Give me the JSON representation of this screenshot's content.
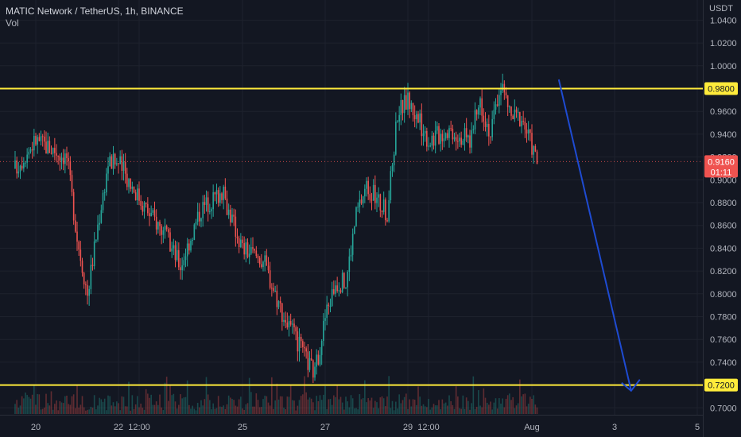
{
  "header": {
    "symbol_title": "MATIC Network / TetherUS, 1h, BINANCE",
    "volume_label": "Vol"
  },
  "price_axis": {
    "currency": "USDT",
    "tick_labels": [
      "0.7000",
      "0.7200",
      "0.7400",
      "0.7600",
      "0.7800",
      "0.8000",
      "0.8200",
      "0.8400",
      "0.8600",
      "0.8800",
      "0.9000",
      "0.9200",
      "0.9400",
      "0.9600",
      "0.9800",
      "1.0000",
      "1.0200",
      "1.0400"
    ]
  },
  "time_axis": {
    "tick_labels": [
      "20",
      "22",
      "12:00",
      "25",
      "27",
      "29",
      "12:00",
      "Aug",
      "3",
      "5"
    ]
  },
  "badges": {
    "resistance": "0.9800",
    "support": "0.7200",
    "last_price": "0.9160",
    "countdown": "01:11"
  },
  "colors": {
    "background": "#131722",
    "grid": "#1e222d",
    "up": "#26a69a",
    "down": "#ef5350",
    "level_line": "#ffeb3b",
    "arrow": "#1e4bd2",
    "axis_text": "#b2b5be",
    "badge_last": "#ef5350"
  },
  "chart_data": {
    "type": "candlestick",
    "title": "MATIC Network / TetherUS, 1h, BINANCE",
    "y_unit": "USDT",
    "ylim": [
      0.693,
      1.043
    ],
    "x_range_days": [
      "Jul 19",
      "Aug 5"
    ],
    "grid": true,
    "horizontal_levels": [
      {
        "label": "resistance",
        "value": 0.98
      },
      {
        "label": "support",
        "value": 0.72
      }
    ],
    "last_price": 0.916,
    "projection_arrow": {
      "from": {
        "date": "Aug 1",
        "value": 0.988
      },
      "to": {
        "date": "Aug 2 (approx)",
        "value": 0.715
      }
    },
    "price_path_approx": [
      {
        "time": "Jul 19 12:00",
        "close": 0.91
      },
      {
        "time": "Jul 20",
        "close": 0.935
      },
      {
        "time": "Jul 20 18:00",
        "close": 0.92
      },
      {
        "time": "Jul 21",
        "close": 0.85
      },
      {
        "time": "Jul 21 06:00",
        "close": 0.8
      },
      {
        "time": "Jul 21 12:00",
        "close": 0.86
      },
      {
        "time": "Jul 21 18:00",
        "close": 0.915
      },
      {
        "time": "Jul 22",
        "close": 0.915
      },
      {
        "time": "Jul 22 18:00",
        "close": 0.87
      },
      {
        "time": "Jul 23",
        "close": 0.86
      },
      {
        "time": "Jul 23 12:00",
        "close": 0.825
      },
      {
        "time": "Jul 24",
        "close": 0.875
      },
      {
        "time": "Jul 24 12:00",
        "close": 0.89
      },
      {
        "time": "Jul 24 18:00",
        "close": 0.865
      },
      {
        "time": "Jul 25",
        "close": 0.84
      },
      {
        "time": "Jul 25 12:00",
        "close": 0.83
      },
      {
        "time": "Jul 26",
        "close": 0.78
      },
      {
        "time": "Jul 26 12:00",
        "close": 0.745
      },
      {
        "time": "Jul 26 18:00",
        "close": 0.73
      },
      {
        "time": "Jul 27",
        "close": 0.78
      },
      {
        "time": "Jul 27 06:00",
        "close": 0.81
      },
      {
        "time": "Jul 27 12:00",
        "close": 0.81
      },
      {
        "time": "Jul 27 18:00",
        "close": 0.87
      },
      {
        "time": "Jul 28",
        "close": 0.895
      },
      {
        "time": "Jul 28 12:00",
        "close": 0.87
      },
      {
        "time": "Jul 28 18:00",
        "close": 0.96
      },
      {
        "time": "Jul 29",
        "close": 0.97
      },
      {
        "time": "Jul 29 12:00",
        "close": 0.935
      },
      {
        "time": "Jul 30",
        "close": 0.945
      },
      {
        "time": "Jul 30 12:00",
        "close": 0.935
      },
      {
        "time": "Jul 30 18:00",
        "close": 0.97
      },
      {
        "time": "Jul 31",
        "close": 0.94
      },
      {
        "time": "Jul 31 06:00",
        "close": 0.985
      },
      {
        "time": "Jul 31 12:00",
        "close": 0.955
      },
      {
        "time": "Jul 31 18:00",
        "close": 0.955
      },
      {
        "time": "Aug 1",
        "close": 0.93
      },
      {
        "time": "Aug 1 03:00",
        "close": 0.916
      }
    ]
  }
}
